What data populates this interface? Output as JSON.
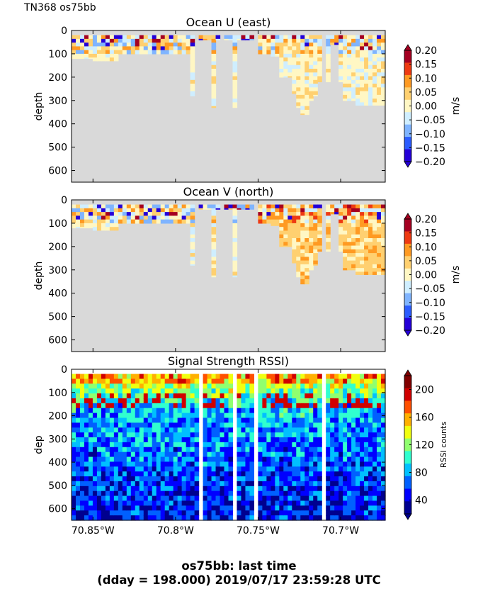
{
  "header": {
    "label": "TN368 os75bb"
  },
  "footer": {
    "line1": "os75bb: last time",
    "line2": "(dday = 198.000) 2019/07/17 23:59:28 UTC"
  },
  "colors": {
    "mask": "#d9d9d9",
    "velocity_cmap": [
      "#2400d8",
      "#2b5cff",
      "#7fb4ff",
      "#cfeeff",
      "#fff7c4",
      "#ffd070",
      "#ff9a22",
      "#ee3a12",
      "#a50021"
    ],
    "rssi_cmap": [
      "#00008f",
      "#0000ff",
      "#0060ff",
      "#00c0ff",
      "#30ffcf",
      "#90ff6f",
      "#f0ff10",
      "#ffb000",
      "#ff5000",
      "#d00000",
      "#800000"
    ]
  },
  "chart_data": [
    {
      "type": "heatmap",
      "title": "Ocean U (east)",
      "ylabel": "depth",
      "xlabel": "",
      "ylim": [
        650,
        0
      ],
      "xlim": [
        -70.863,
        -70.673
      ],
      "yticks": [
        "0",
        "100",
        "200",
        "300",
        "400",
        "500",
        "600"
      ],
      "xticks": [],
      "colorbar": {
        "label": "m/s",
        "range": [
          -0.2,
          0.2
        ],
        "ticks": [
          "0.20",
          "0.15",
          "0.10",
          "0.05",
          "0.00",
          "−0.05",
          "−0.10",
          "−0.15",
          "−0.20"
        ]
      }
    },
    {
      "type": "heatmap",
      "title": "Ocean V (north)",
      "ylabel": "depth",
      "xlabel": "",
      "ylim": [
        650,
        0
      ],
      "xlim": [
        -70.863,
        -70.673
      ],
      "yticks": [
        "0",
        "100",
        "200",
        "300",
        "400",
        "500",
        "600"
      ],
      "xticks": [],
      "colorbar": {
        "label": "m/s",
        "range": [
          -0.2,
          0.2
        ],
        "ticks": [
          "0.20",
          "0.15",
          "0.10",
          "0.05",
          "0.00",
          "−0.05",
          "−0.10",
          "−0.15",
          "−0.20"
        ]
      }
    },
    {
      "type": "heatmap",
      "title": "Signal Strength RSSI)",
      "ylabel": "dep",
      "xlabel": "",
      "ylim": [
        650,
        0
      ],
      "xlim": [
        -70.863,
        -70.673
      ],
      "yticks": [
        "0",
        "100",
        "200",
        "300",
        "400",
        "500",
        "600"
      ],
      "xticks": [
        "70.85°W",
        "70.8°W",
        "70.75°W",
        "70.7°W"
      ],
      "xtick_values": [
        -70.85,
        -70.8,
        -70.75,
        -70.7
      ],
      "colorbar": {
        "label": "RSSI counts",
        "range": [
          20,
          220
        ],
        "ticks": [
          "200",
          "160",
          "120",
          "80",
          "40"
        ]
      }
    }
  ]
}
